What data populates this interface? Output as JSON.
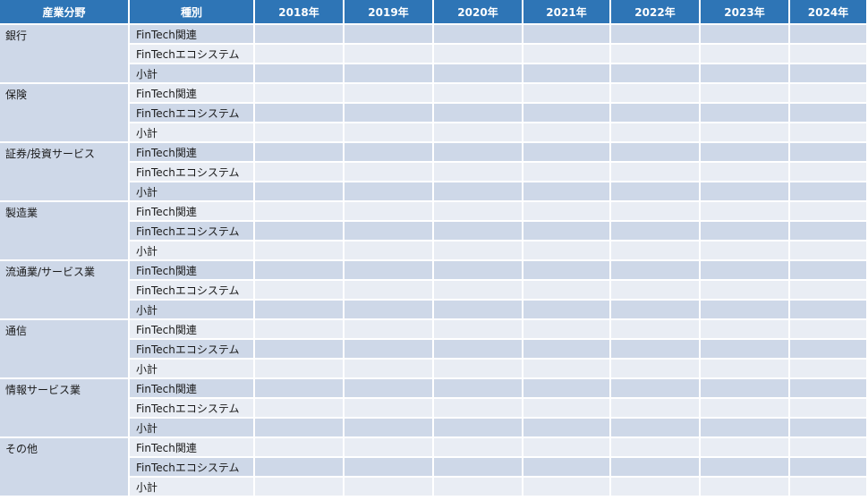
{
  "headers": {
    "sector": "産業分野",
    "type": "種別",
    "years": [
      "2018年",
      "2019年",
      "2020年",
      "2021年",
      "2022年",
      "2023年",
      "2024年"
    ]
  },
  "types": [
    "FinTech関連",
    "FinTechエコシステム",
    "小計"
  ],
  "sectors": [
    "銀行",
    "保険",
    "証券/投資サービス",
    "製造業",
    "流通業/サービス業",
    "通信",
    "情報サービス業",
    "その他"
  ],
  "colors": {
    "header_bg": "#2e75b6",
    "row_dark": "#ced8e8",
    "row_light": "#e9edf4"
  }
}
